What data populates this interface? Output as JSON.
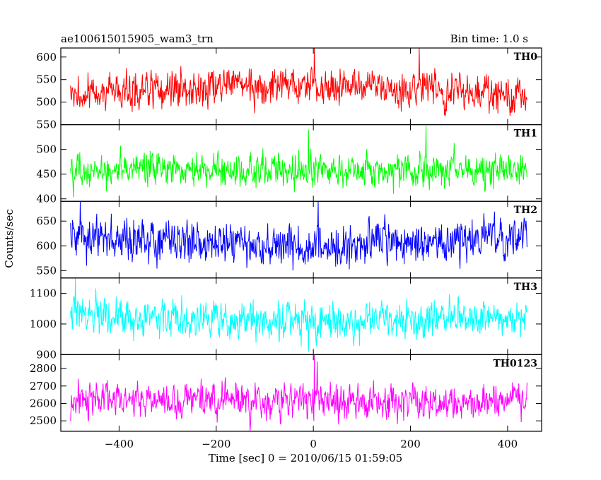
{
  "header": {
    "left_title": "ae100615015905_wam3_trn",
    "right_title": "Bin time: 1.0 s"
  },
  "axes": {
    "xlabel": "Time [sec] 0 = 2010/06/15 01:59:05",
    "ylabel": "Counts/sec"
  },
  "chart_data": {
    "type": "line",
    "x_range": [
      -500,
      440
    ],
    "xlim": [
      -520,
      470
    ],
    "x_ticks": [
      -400,
      -200,
      0,
      200,
      400
    ],
    "x_tick_labels": [
      "−400",
      "−200",
      "0",
      "200",
      "400"
    ],
    "grid": false,
    "panels": [
      {
        "name": "TH0",
        "color": "#ff0000",
        "ylim": [
          450,
          620
        ],
        "y_ticks": [
          500,
          550,
          600
        ],
        "y_tick_labels": [
          "500",
          "550",
          "600"
        ],
        "baseline": 515,
        "trend": 25,
        "noise": 28,
        "spikes": [
          {
            "x": 2,
            "y": 620
          },
          {
            "x": 218,
            "y": 620
          }
        ]
      },
      {
        "name": "TH1",
        "color": "#00ff00",
        "ylim": [
          395,
          550
        ],
        "y_ticks": [
          400,
          450,
          500,
          550
        ],
        "y_tick_labels": [
          "400",
          "450",
          "500",
          "550"
        ],
        "baseline": 458,
        "trend": 0,
        "noise": 24,
        "spikes": [
          {
            "x": 232,
            "y": 548
          },
          {
            "x": -10,
            "y": 540
          }
        ]
      },
      {
        "name": "TH2",
        "color": "#0000ff",
        "ylim": [
          535,
          690
        ],
        "y_ticks": [
          550,
          600,
          650
        ],
        "y_tick_labels": [
          "550",
          "600",
          "650"
        ],
        "baseline": 620,
        "trend": -20,
        "noise": 28,
        "spikes": [
          {
            "x": -480,
            "y": 690
          },
          {
            "x": 10,
            "y": 690
          }
        ]
      },
      {
        "name": "TH3",
        "color": "#00ffff",
        "ylim": [
          900,
          1150
        ],
        "y_ticks": [
          900,
          1000,
          1100
        ],
        "y_tick_labels": [
          "900",
          "1000",
          "1100"
        ],
        "baseline": 1030,
        "trend": -20,
        "noise": 42,
        "spikes": [
          {
            "x": -490,
            "y": 1150
          },
          {
            "x": -10,
            "y": 910
          }
        ]
      },
      {
        "name": "TH0123",
        "color": "#ff00ff",
        "ylim": [
          2440,
          2880
        ],
        "y_ticks": [
          2500,
          2600,
          2700,
          2800
        ],
        "y_tick_labels": [
          "2500",
          "2600",
          "2700",
          "2800"
        ],
        "baseline": 2620,
        "trend": -10,
        "noise": 70,
        "spikes": [
          {
            "x": 2,
            "y": 2880
          },
          {
            "x": 8,
            "y": 2840
          }
        ]
      }
    ]
  }
}
